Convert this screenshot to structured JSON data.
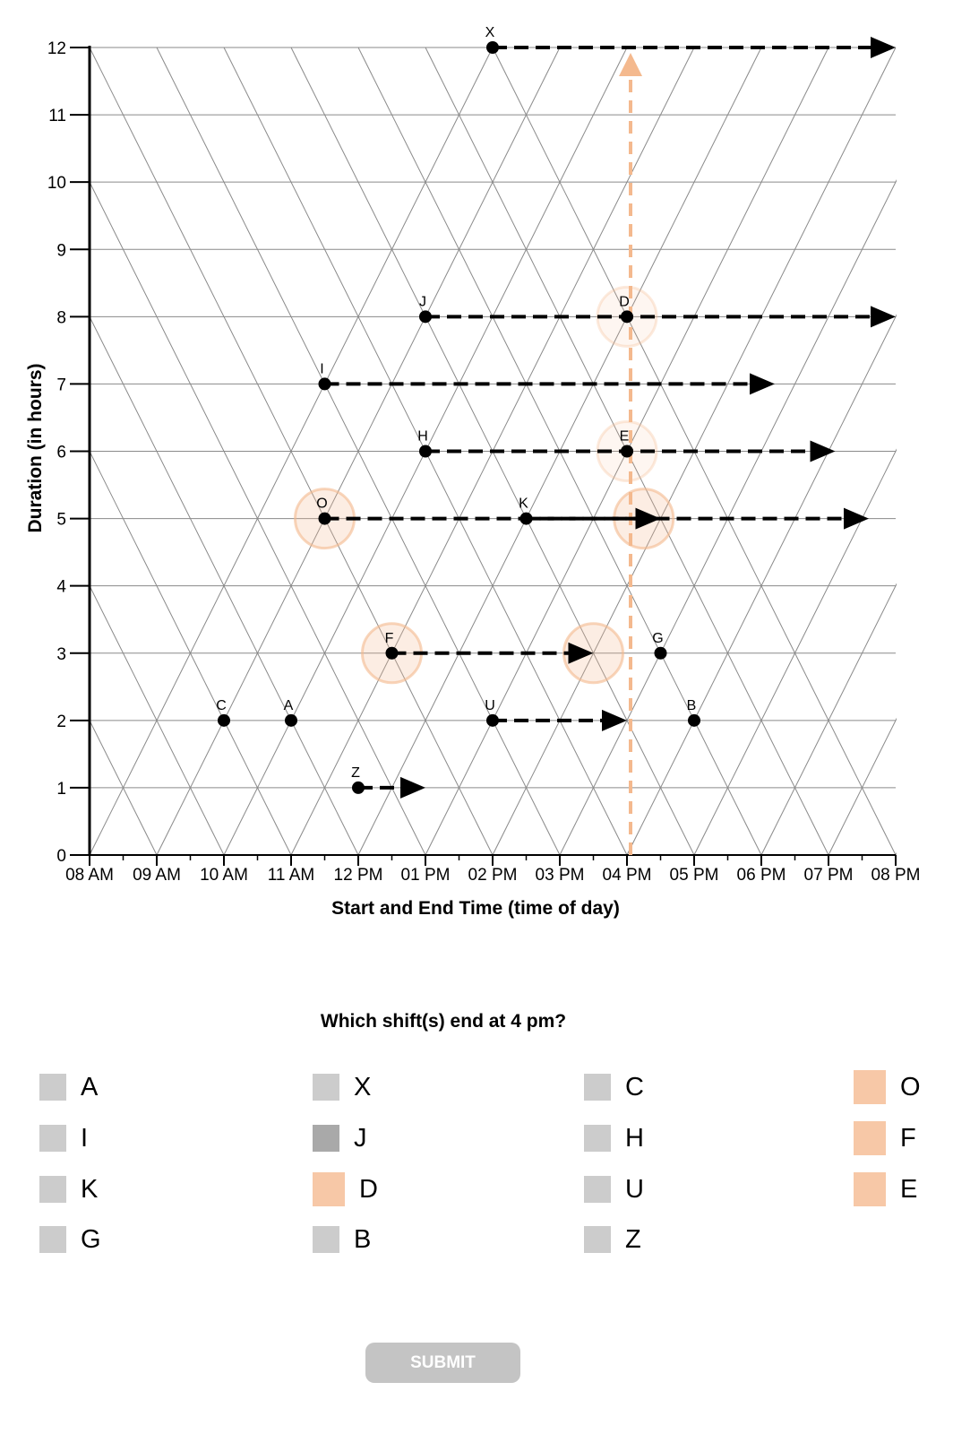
{
  "chart_data": {
    "type": "scatter",
    "xlabel": "Start and End Time (time of day)",
    "ylabel": "Duration (in hours)",
    "xlim": [
      8,
      20
    ],
    "ylim": [
      0,
      12
    ],
    "x_ticks": [
      8,
      9,
      10,
      11,
      12,
      13,
      14,
      15,
      16,
      17,
      18,
      19,
      20
    ],
    "x_tick_labels": [
      "08 AM",
      "09 AM",
      "10 AM",
      "11 AM",
      "12 PM",
      "01 PM",
      "02 PM",
      "03 PM",
      "04 PM",
      "05 PM",
      "06 PM",
      "07 PM",
      "08 PM"
    ],
    "y_ticks": [
      0,
      1,
      2,
      3,
      4,
      5,
      6,
      7,
      8,
      9,
      10,
      11,
      12
    ],
    "y_tick_labels": [
      "0",
      "1",
      "2",
      "3",
      "4",
      "5",
      "6",
      "7",
      "8",
      "9",
      "10",
      "11",
      "12"
    ],
    "grid": true,
    "points": [
      {
        "label": "X",
        "x": 14,
        "y": 12
      },
      {
        "label": "J",
        "x": 13,
        "y": 8
      },
      {
        "label": "D",
        "x": 16,
        "y": 8
      },
      {
        "label": "I",
        "x": 11.5,
        "y": 7
      },
      {
        "label": "H",
        "x": 13,
        "y": 6
      },
      {
        "label": "E",
        "x": 16,
        "y": 6
      },
      {
        "label": "O",
        "x": 11.5,
        "y": 5
      },
      {
        "label": "K",
        "x": 14.5,
        "y": 5
      },
      {
        "label": "F",
        "x": 12.5,
        "y": 3
      },
      {
        "label": "G",
        "x": 16.5,
        "y": 3
      },
      {
        "label": "C",
        "x": 10,
        "y": 2
      },
      {
        "label": "A",
        "x": 11,
        "y": 2
      },
      {
        "label": "U",
        "x": 14,
        "y": 2
      },
      {
        "label": "B",
        "x": 17,
        "y": 2
      },
      {
        "label": "Z",
        "x": 12,
        "y": 1
      }
    ],
    "arrows": [
      {
        "from": "X",
        "start": 14,
        "end": 20,
        "y": 12
      },
      {
        "from": "J",
        "start": 13,
        "end": 20,
        "y": 8
      },
      {
        "from": "I",
        "start": 11.5,
        "end": 18.2,
        "y": 7
      },
      {
        "from": "H",
        "start": 13,
        "end": 19.1,
        "y": 6
      },
      {
        "from": "K",
        "start": 14.5,
        "end": 19.6,
        "y": 5
      },
      {
        "from": "O",
        "start": 11.5,
        "end": 16.5,
        "y": 5
      },
      {
        "from": "F",
        "start": 12.5,
        "end": 15.5,
        "y": 3
      },
      {
        "from": "U",
        "start": 14,
        "end": 16,
        "y": 2
      },
      {
        "from": "Z",
        "start": 12,
        "end": 13,
        "y": 1
      }
    ],
    "highlights": [
      {
        "x": 11.5,
        "y": 5,
        "opacity": 0.6
      },
      {
        "x": 16.25,
        "y": 5,
        "opacity": 0.6
      },
      {
        "x": 12.5,
        "y": 3,
        "opacity": 0.6
      },
      {
        "x": 15.5,
        "y": 3,
        "opacity": 0.6
      },
      {
        "x": 16,
        "y": 8,
        "opacity": 0.3
      },
      {
        "x": 16,
        "y": 6,
        "opacity": 0.3
      }
    ],
    "reference_line": {
      "x": 16,
      "y_from": 0,
      "y_to": 12
    },
    "colors": {
      "highlight": "#f4b98e",
      "grid": "#8a8a8a",
      "point": "#000000"
    }
  },
  "question": "Which shift(s) end at 4 pm?",
  "options": [
    {
      "label": "A",
      "state": "default"
    },
    {
      "label": "X",
      "state": "default"
    },
    {
      "label": "C",
      "state": "default"
    },
    {
      "label": "O",
      "state": "selected"
    },
    {
      "label": "I",
      "state": "default"
    },
    {
      "label": "J",
      "state": "hover"
    },
    {
      "label": "H",
      "state": "default"
    },
    {
      "label": "F",
      "state": "selected"
    },
    {
      "label": "K",
      "state": "default"
    },
    {
      "label": "D",
      "state": "selected"
    },
    {
      "label": "U",
      "state": "default"
    },
    {
      "label": "E",
      "state": "selected"
    },
    {
      "label": "G",
      "state": "default"
    },
    {
      "label": "B",
      "state": "default"
    },
    {
      "label": "Z",
      "state": "default"
    }
  ],
  "submit_label": "SUBMIT"
}
